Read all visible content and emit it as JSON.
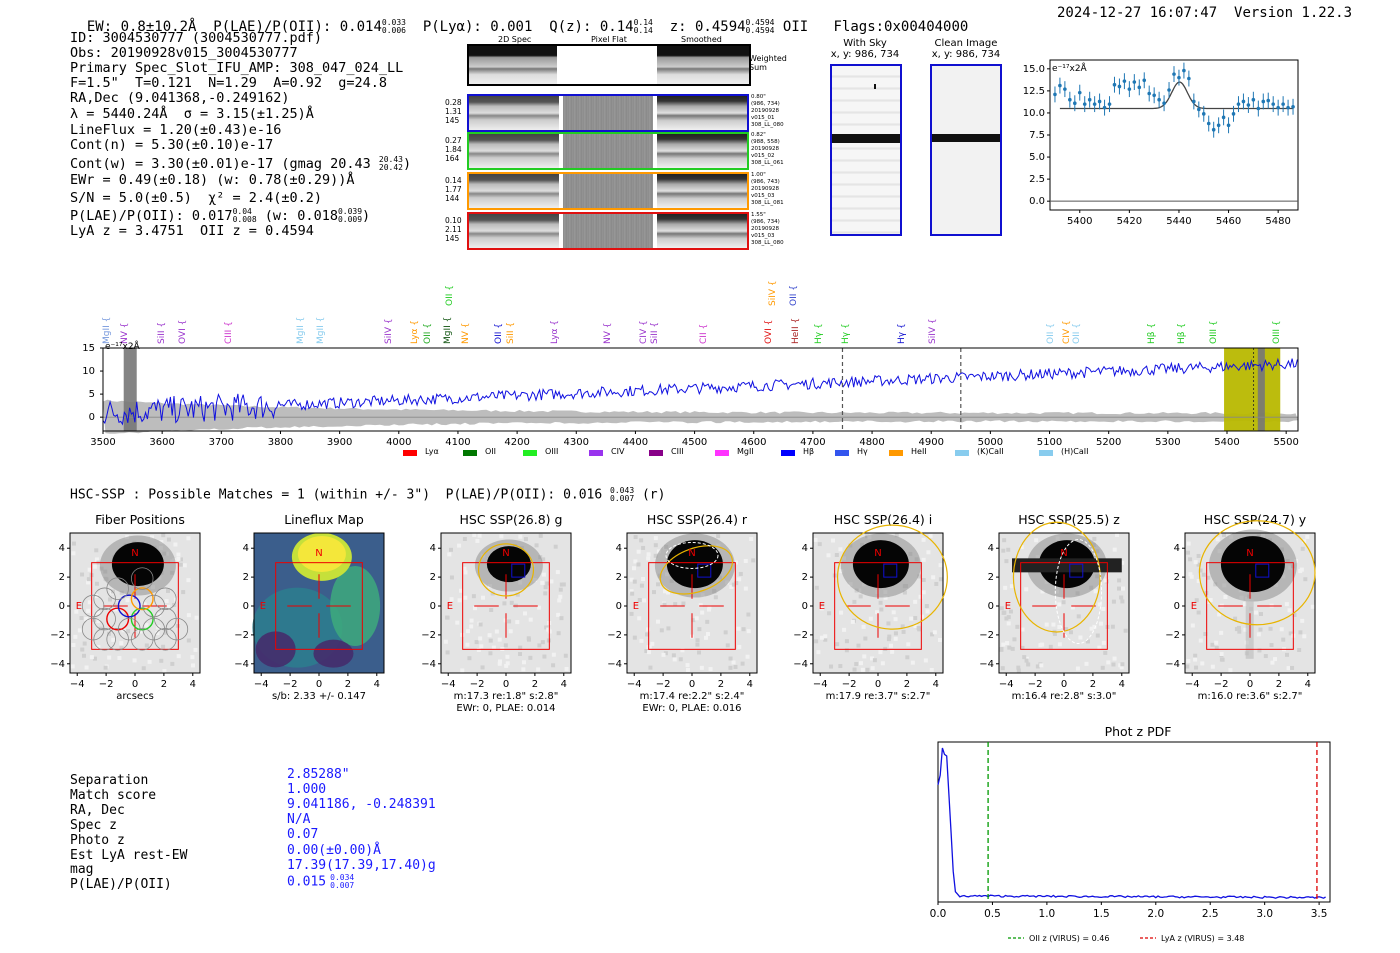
{
  "header": {
    "ew": "EW: 0.8±10.2Å",
    "plae_label": "P(LAE)/P(OII): 0.014",
    "plae_hi": "0.033",
    "plae_lo": "0.006",
    "plya": "P(Lyα): 0.001",
    "qz_label": "Q(z): 0.14",
    "qz_hi": "0.14",
    "qz_lo": "0.14",
    "z_label": "z: 0.4594",
    "z_hi": "0.4594",
    "z_lo": "0.4594",
    "z_line": "OII",
    "flags": "Flags:0x00404000",
    "timestamp": "2024-12-27 16:07:47",
    "version": "Version 1.22.3"
  },
  "info": {
    "id": "ID: 3004530777 (3004530777.pdf)",
    "obs": "Obs: 20190928v015_3004530777",
    "primary": "Primary Spec_Slot_IFU_AMP: 308_047_024_LL",
    "fibers": "F=1.5\"  T=0.121  N=1.29  A=0.92  g=24.8",
    "radec": "RA,Dec (9.041368,-0.249162)",
    "lambda": "λ = 5440.24Å  σ = 3.15(±1.25)Å",
    "lineflux": "LineFlux = 1.20(±0.43)e-16",
    "contn": "Cont(n) = 5.30(±0.10)e-17",
    "contw": "Cont(w) = 3.30(±0.01)e-17 (gmag 20.43",
    "contw_hi": "20.43",
    "contw_lo": "20.42",
    "ewr": "EWr = 0.49(±0.18) (w: 0.78(±0.29))Å",
    "sn": "S/N = 5.0(±0.5)  χ² = 2.4(±0.2)",
    "plae": "P(LAE)/P(OII): 0.017",
    "plae_hi": "0.04",
    "plae_lo": "0.008",
    "plae_w": "(w: 0.018",
    "plae_w_hi": "0.039",
    "plae_w_lo": "0.009",
    "plae_w_end": ")",
    "lyaz": "LyA z = 3.4751  OII z = 0.4594"
  },
  "spec_panel": {
    "col_headers": [
      "2D Spec",
      "Pixel Flat",
      "Smoothed"
    ],
    "weighted_sum": "Weighted Sum",
    "rows": [
      {
        "left": [
          "0.28",
          "1.31",
          "145"
        ],
        "right": [
          "0.80\"",
          "(986, 734)",
          "20190928",
          "v015_01",
          "308_LL_080"
        ],
        "color": "#1010d0"
      },
      {
        "left": [
          "0.27",
          "1.84",
          "164"
        ],
        "right": [
          "0.82\"",
          "(988, 558)",
          "20190928",
          "v015_02",
          "308_LL_061"
        ],
        "color": "#22cc22"
      },
      {
        "left": [
          "0.14",
          "1.77",
          "144"
        ],
        "right": [
          "1.00\"",
          "(986, 743)",
          "20190928",
          "v015_03",
          "308_LL_081"
        ],
        "color": "#ff9900"
      },
      {
        "left": [
          "0.10",
          "2.11",
          "145"
        ],
        "right": [
          "1.55\"",
          "(986, 734)",
          "20190928",
          "v015_03",
          "308_LL_080"
        ],
        "color": "#e01010"
      }
    ]
  },
  "cutouts": {
    "with_sky": {
      "title": "With Sky",
      "coords": "x, y: 986, 734"
    },
    "clean": {
      "title": "Clean Image",
      "coords": "x, y: 986, 734"
    }
  },
  "fit_chart": {
    "unit_label": "e⁻¹⁷x2Å",
    "yticks": [
      "15.0",
      "12.5",
      "10.0",
      "7.5",
      "5.0",
      "2.5",
      "0.0"
    ],
    "xticks": [
      "5400",
      "5420",
      "5440",
      "5460",
      "5480"
    ]
  },
  "spectrum": {
    "unit_label": "e⁻¹⁷x2Å",
    "yticks": [
      "15",
      "10",
      "5",
      "0"
    ],
    "xticks": [
      "3500",
      "3600",
      "3700",
      "3800",
      "3900",
      "4000",
      "4100",
      "4200",
      "4300",
      "4400",
      "4500",
      "4600",
      "4700",
      "4800",
      "4900",
      "5000",
      "5100",
      "5200",
      "5300",
      "5400",
      "5500"
    ],
    "lines": [
      {
        "label": "MgII",
        "color": "#7799dd"
      },
      {
        "label": "NV",
        "color": "#9933cc"
      },
      {
        "label": "SiII",
        "color": "#9933cc"
      },
      {
        "label": "OVI",
        "color": "#9933cc"
      },
      {
        "label": "CIII",
        "color": "#cc33cc"
      },
      {
        "label": "MgII",
        "color": "#88ccee"
      },
      {
        "label": "MgII",
        "color": "#88ccee"
      },
      {
        "label": "SiIV",
        "color": "#9933cc"
      },
      {
        "label": "Lyα",
        "color": "#ff9900"
      },
      {
        "label": "OII",
        "color": "#22aa22"
      },
      {
        "label": "MgII",
        "color": "#115511"
      },
      {
        "label": "OII",
        "color": "#22cc22"
      },
      {
        "label": "NV",
        "color": "#ff9900"
      },
      {
        "label": "OII",
        "color": "#1010d0"
      },
      {
        "label": "SiII",
        "color": "#ff9900"
      },
      {
        "label": "Lyα",
        "color": "#9933cc"
      },
      {
        "label": "NV",
        "color": "#9933cc"
      },
      {
        "label": "CIV",
        "color": "#9933cc"
      },
      {
        "label": "SiII",
        "color": "#9933cc"
      },
      {
        "label": "CII",
        "color": "#cc33cc"
      },
      {
        "label": "OVI",
        "color": "#e01010"
      },
      {
        "label": "SiIV",
        "color": "#ff9900"
      },
      {
        "label": "HeII",
        "color": "#aa2222"
      },
      {
        "label": "OII",
        "color": "#3344cc"
      },
      {
        "label": "Hγ",
        "color": "#22cc22"
      },
      {
        "label": "Hγ",
        "color": "#22cc22"
      },
      {
        "label": "Hγ",
        "color": "#1010d0"
      },
      {
        "label": "SiIV",
        "color": "#9933cc"
      },
      {
        "label": "OII",
        "color": "#88ccee"
      },
      {
        "label": "CIV",
        "color": "#ff9900"
      },
      {
        "label": "OII",
        "color": "#88ccee"
      },
      {
        "label": "Hβ",
        "color": "#22cc22"
      },
      {
        "label": "Hβ",
        "color": "#22cc22"
      },
      {
        "label": "OIII",
        "color": "#22cc22"
      },
      {
        "label": "OIII",
        "color": "#22cc22"
      }
    ],
    "legend": [
      {
        "label": "Lyα",
        "color": "#ff0000"
      },
      {
        "label": "OII",
        "color": "#007700"
      },
      {
        "label": "OIII",
        "color": "#22ee22"
      },
      {
        "label": "CIV",
        "color": "#9933ee"
      },
      {
        "label": "CIII",
        "color": "#880088"
      },
      {
        "label": "MgII",
        "color": "#ff33ff"
      },
      {
        "label": "Hβ",
        "color": "#0000ff"
      },
      {
        "label": "Hγ",
        "color": "#3355ee"
      },
      {
        "label": "HeII",
        "color": "#ff9900"
      },
      {
        "label": "(K)CaII",
        "color": "#88ccee"
      },
      {
        "label": "(H)CaII",
        "color": "#88ccee"
      }
    ]
  },
  "hsc": {
    "summary": "HSC-SSP : Possible Matches = 1 (within +/- 3\")  P(LAE)/P(OII): 0.016",
    "summary_hi": "0.043",
    "summary_lo": "0.007",
    "summary_band": "(r)",
    "panels": [
      {
        "title": "Fiber Positions",
        "caption": [
          "arcsecs"
        ]
      },
      {
        "title": "Lineflux Map",
        "caption": [
          "s/b: 2.33 +/- 0.147"
        ]
      },
      {
        "title": "HSC SSP(26.8) g",
        "caption": [
          "m:17.3  re:1.8\"  s:2.8\"",
          "EWr: 0, PLAE: 0.014"
        ]
      },
      {
        "title": "HSC SSP(26.4) r",
        "caption": [
          "m:17.4  re:2.2\"  s:2.4\"",
          "EWr: 0, PLAE: 0.016"
        ]
      },
      {
        "title": "HSC SSP(26.4) i",
        "caption": [
          "m:17.9  re:3.7\"  s:2.7\""
        ]
      },
      {
        "title": "HSC SSP(25.5) z",
        "caption": [
          "m:16.4  re:2.8\"  s:3.0\""
        ]
      },
      {
        "title": "HSC SSP(24.7) y",
        "caption": [
          "m:16.0  re:3.6\"  s:2.7\""
        ]
      }
    ],
    "axis_ticks_y": [
      "4",
      "2",
      "0",
      "−2",
      "−4"
    ],
    "axis_ticks_x": [
      "−4",
      "−2",
      "0",
      "2",
      "4"
    ],
    "north": "N",
    "east": "E"
  },
  "match": {
    "labels": [
      "Separation",
      "Match score",
      "RA, Dec",
      "Spec z",
      "Photo z",
      "Est LyA rest-EW",
      "mag",
      "P(LAE)/P(OII)"
    ],
    "values": [
      "2.85288\"",
      "1.000",
      "9.041186, -0.248391",
      "N/A",
      "0.07",
      "0.00(±0.00)Å",
      "17.39(17.39,17.40)g",
      "0.015"
    ],
    "plae_hi": "0.034",
    "plae_lo": "0.007"
  },
  "photz_chart": {
    "title": "Phot z PDF",
    "xticks": [
      "0.0",
      "0.5",
      "1.0",
      "1.5",
      "2.0",
      "2.5",
      "3.0",
      "3.5"
    ],
    "legend": [
      {
        "label": "OII z (VIRUS) = 0.46",
        "color": "#009900"
      },
      {
        "label": "LyA z (VIRUS) = 3.48",
        "color": "#dd0000"
      }
    ]
  },
  "chart_data": [
    {
      "type": "line",
      "title": "",
      "xlabel": "",
      "ylabel": "e⁻¹⁷x2Å",
      "xlim": [
        3500,
        5520
      ],
      "ylim": [
        -3,
        15
      ],
      "series": [
        {
          "values_shape": "blue flux rising from ~1 at 3500 to ~12 at 5500 with noise"
        }
      ],
      "vlines": [
        4750,
        4950,
        5445
      ],
      "highlight_ranges": [
        [
          5395,
          5490
        ]
      ]
    },
    {
      "type": "scatter",
      "title": "",
      "ylabel": "e⁻¹⁷x2Å",
      "xlim": [
        5388,
        5488
      ],
      "ylim": [
        -1,
        16
      ],
      "x": [
        5390,
        5392,
        5394,
        5396,
        5398,
        5400,
        5402,
        5404,
        5406,
        5408,
        5410,
        5412,
        5414,
        5416,
        5418,
        5420,
        5422,
        5424,
        5426,
        5428,
        5430,
        5432,
        5434,
        5436,
        5438,
        5440,
        5442,
        5444,
        5446,
        5448,
        5450,
        5452,
        5454,
        5456,
        5458,
        5460,
        5462,
        5464,
        5466,
        5468,
        5470,
        5472,
        5474,
        5476,
        5478,
        5480,
        5482,
        5484,
        5486
      ],
      "y": [
        12.1,
        13.1,
        12.7,
        11.5,
        11.1,
        12.3,
        11.0,
        11.5,
        11.0,
        11.3,
        10.6,
        11.0,
        13.2,
        13.0,
        13.6,
        12.7,
        13.5,
        12.9,
        13.7,
        12.2,
        12.0,
        11.5,
        11.1,
        12.6,
        14.4,
        14.0,
        14.8,
        13.9,
        11.3,
        10.4,
        9.9,
        8.8,
        8.1,
        8.6,
        9.5,
        8.6,
        9.9,
        11.0,
        11.3,
        10.9,
        11.5,
        10.5,
        11.3,
        11.4,
        11.0,
        10.6,
        11.0,
        10.6,
        10.7
      ],
      "fit": {
        "continuum": 10.5,
        "center": 5440.24,
        "sigma": 3.15,
        "amplitude": 3.0
      }
    },
    {
      "type": "line",
      "title": "Phot z PDF",
      "xlim": [
        0,
        3.6
      ],
      "x": [
        0.0,
        0.03,
        0.07,
        0.1,
        0.13,
        0.16,
        0.2,
        0.3,
        0.5,
        0.8,
        1.0,
        1.5,
        2.0,
        2.5,
        3.0,
        3.5,
        3.6
      ],
      "y": [
        0.75,
        0.85,
        0.95,
        0.6,
        0.2,
        0.03,
        0.02,
        0.015,
        0.012,
        0.01,
        0.013,
        0.01,
        0.008,
        0.007,
        0.006,
        0.005,
        0.005
      ],
      "vlines": [
        {
          "x": 0.46,
          "label": "OII z (VIRUS) = 0.46"
        },
        {
          "x": 3.48,
          "label": "LyA z (VIRUS) = 3.48"
        }
      ]
    }
  ]
}
